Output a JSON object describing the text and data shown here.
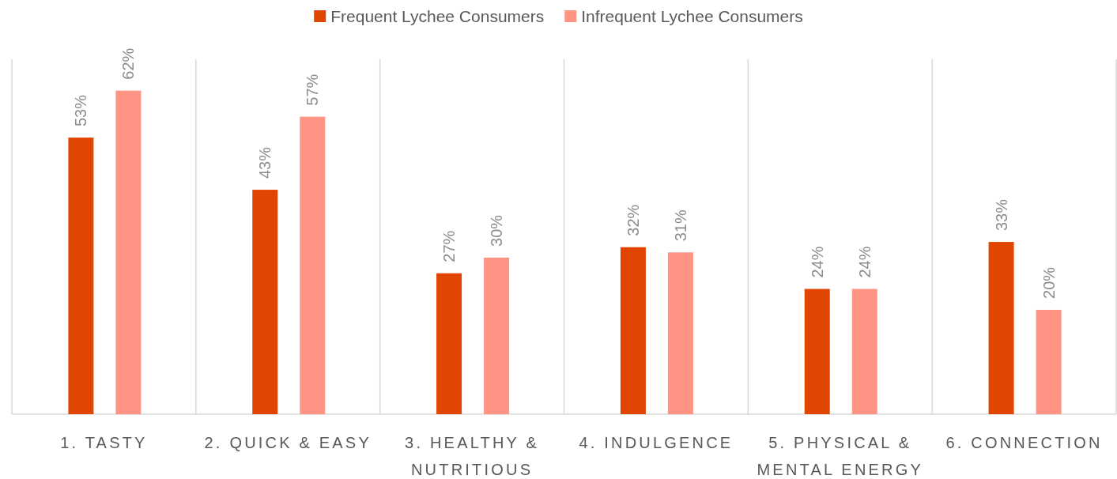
{
  "chart_data": {
    "type": "bar",
    "categories": [
      "1. TASTY",
      "2. QUICK & EASY",
      "3. HEALTHY & NUTRITIOUS",
      "4. INDULGENCE",
      "5. PHYSICAL & MENTAL ENERGY",
      "6. CONNECTION"
    ],
    "series": [
      {
        "name": "Frequent Lychee Consumers",
        "color": "#e04502",
        "values": [
          53,
          43,
          27,
          32,
          24,
          33
        ],
        "value_labels": [
          "53%",
          "43%",
          "27%",
          "32%",
          "24%",
          "33%"
        ]
      },
      {
        "name": "Infrequent Lychee Consumers",
        "color": "#ff9484",
        "values": [
          62,
          57,
          30,
          31,
          24,
          20
        ],
        "value_labels": [
          "62%",
          "57%",
          "30%",
          "31%",
          "24%",
          "20%"
        ]
      }
    ],
    "relative": false,
    "grid": "x",
    "legend": "top"
  }
}
